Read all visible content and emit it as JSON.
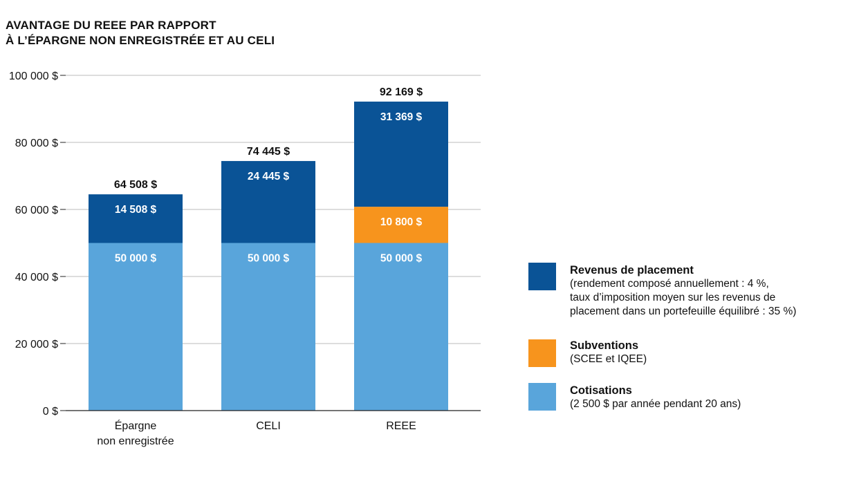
{
  "title_line1": "AVANTAGE DU REEE PAR RAPPORT",
  "title_line2": "À L’ÉPARGNE NON ENREGISTRÉE ET AU CELI",
  "colors": {
    "revenus": "#0A5396",
    "subventions": "#F7941D",
    "cotisations": "#59A5DB",
    "grid": "#BBBBBB",
    "axis": "#222222"
  },
  "legend": [
    {
      "key": "revenus",
      "title": "Revenus de placement",
      "lines": [
        "(rendement composé annuellement : 4 %,",
        "taux d’imposition moyen sur les revenus de",
        "placement dans un portefeuille équilibré : 35 %)"
      ]
    },
    {
      "key": "subventions",
      "title": "Subventions",
      "lines": [
        "(SCEE et IQEE)"
      ]
    },
    {
      "key": "cotisations",
      "title": "Cotisations",
      "lines": [
        "(2 500 $ par année pendant 20 ans)"
      ]
    }
  ],
  "chart_data": {
    "type": "bar",
    "stacked": true,
    "categories": [
      [
        "Épargne",
        "non enregistrée"
      ],
      [
        "CELI"
      ],
      [
        "REEE"
      ]
    ],
    "series": [
      {
        "name": "Cotisations",
        "key": "cotisations",
        "values": [
          50000,
          50000,
          50000
        ],
        "labels": [
          "50 000 $",
          "50 000 $",
          "50 000 $"
        ]
      },
      {
        "name": "Subventions",
        "key": "subventions",
        "values": [
          0,
          0,
          10800
        ],
        "labels": [
          "",
          "",
          "10 800 $"
        ]
      },
      {
        "name": "Revenus de placement",
        "key": "revenus",
        "values": [
          14508,
          24445,
          31369
        ],
        "labels": [
          "14 508 $",
          "24 445 $",
          "31 369 $"
        ]
      }
    ],
    "totals": [
      64508,
      74445,
      92169
    ],
    "total_labels": [
      "64 508 $",
      "74 445 $",
      "92 169 $"
    ],
    "ylim": [
      0,
      100000
    ],
    "yticks": [
      0,
      20000,
      40000,
      60000,
      80000,
      100000
    ],
    "ytick_labels": [
      "0 $",
      "20 000 $",
      "40 000 $",
      "60 000 $",
      "80 000 $",
      "100 000 $"
    ],
    "grid": true
  }
}
